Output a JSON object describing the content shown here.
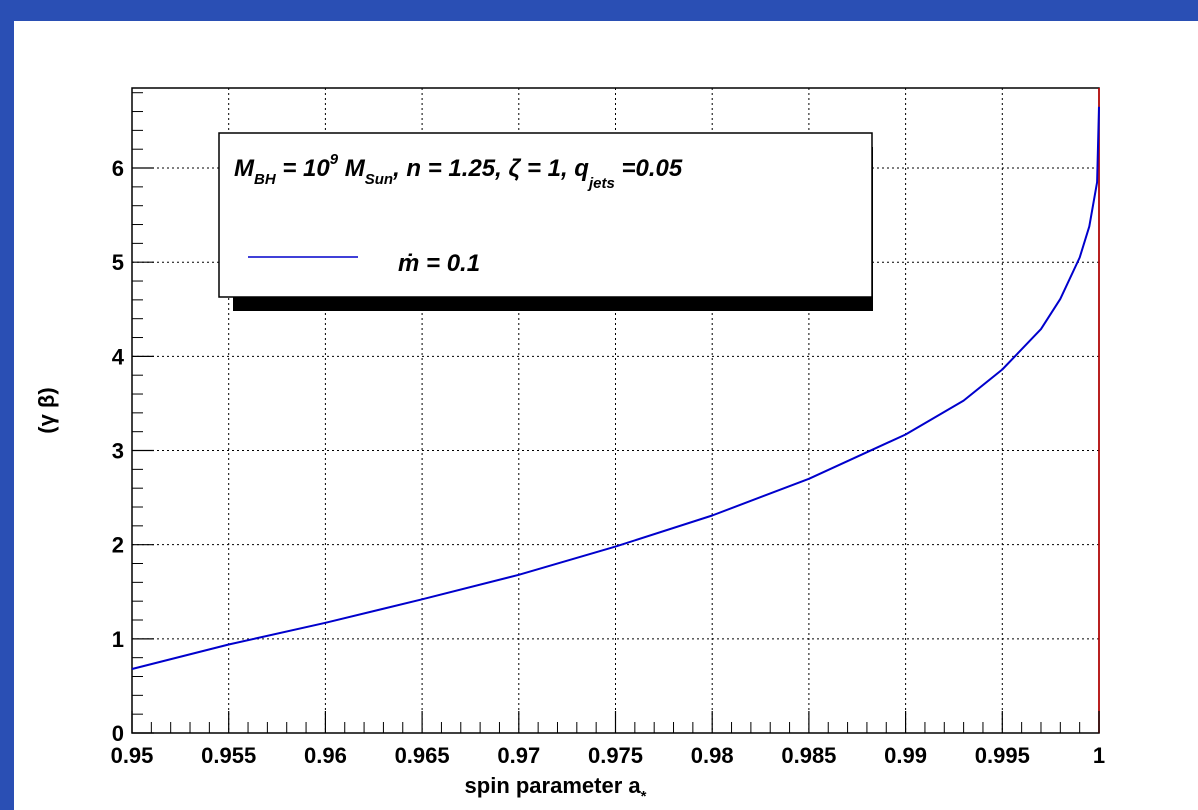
{
  "chart_data": {
    "type": "line",
    "title": "",
    "xlabel": "spin parameter a",
    "xlabel_subscript": "*",
    "ylabel": "(γ β)",
    "xlim": [
      0.95,
      1.0
    ],
    "ylim": [
      0,
      6.85
    ],
    "x_ticks": [
      "0.95",
      "0.955",
      "0.96",
      "0.965",
      "0.97",
      "0.975",
      "0.98",
      "0.985",
      "0.99",
      "0.995",
      "1"
    ],
    "y_ticks": [
      "0",
      "1",
      "2",
      "3",
      "4",
      "5",
      "6"
    ],
    "grid": true,
    "legend": {
      "placement": "top-left",
      "header": {
        "m": "M",
        "m_sub": "BH",
        "eq1": " = 10",
        "exp": "9",
        "m2": " M",
        "m2_sub": "Sun",
        "params": ", n = 1.25, ζ = 1, q",
        "q_sub": "jets",
        "qval": " =0.05"
      },
      "entry": "ṁ = 0.1"
    },
    "series": [
      {
        "name": "ṁ = 0.1",
        "color": "#0000cc",
        "x": [
          0.95,
          0.955,
          0.96,
          0.965,
          0.97,
          0.975,
          0.98,
          0.985,
          0.99,
          0.993,
          0.995,
          0.997,
          0.998,
          0.999,
          0.9995,
          0.9999,
          1.0
        ],
        "y": [
          0.68,
          0.94,
          1.17,
          1.42,
          1.68,
          1.98,
          2.31,
          2.7,
          3.17,
          3.53,
          3.86,
          4.29,
          4.61,
          5.05,
          5.38,
          5.85,
          6.65
        ]
      }
    ]
  }
}
